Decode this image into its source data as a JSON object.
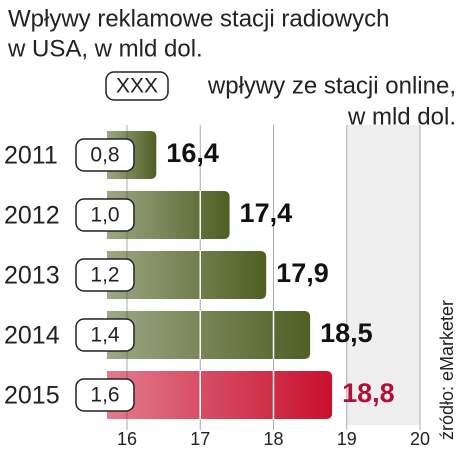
{
  "chart_data": {
    "type": "hbar",
    "title": [
      "Wpływy reklamowe stacji radiowych",
      "w USA, w mld dol."
    ],
    "legend_symbol": "XXX",
    "legend_text": [
      "wpływy ze stacji online,",
      "w mld dol."
    ],
    "source": "źródło: eMarketer",
    "categories": [
      "2011",
      "2012",
      "2013",
      "2014",
      "2015"
    ],
    "values": [
      16.4,
      17.4,
      17.9,
      18.5,
      18.8
    ],
    "value_labels": [
      "16,4",
      "17,4",
      "17,9",
      "18,5",
      "18,8"
    ],
    "colors": [
      "#4f5f22",
      "#4f5f22",
      "#4f5f22",
      "#4f5f22",
      "#c8102e"
    ],
    "label_colors": [
      "#111111",
      "#111111",
      "#111111",
      "#111111",
      "#b0103a"
    ],
    "online": {
      "values": [
        0.8,
        1.0,
        1.2,
        1.4,
        1.6
      ],
      "value_labels": [
        "0,8",
        "1,0",
        "1,2",
        "1,4",
        "1,6"
      ]
    },
    "xlim": [
      16,
      20
    ],
    "xticks": [
      16,
      17,
      18,
      19,
      20
    ],
    "grid": true
  }
}
